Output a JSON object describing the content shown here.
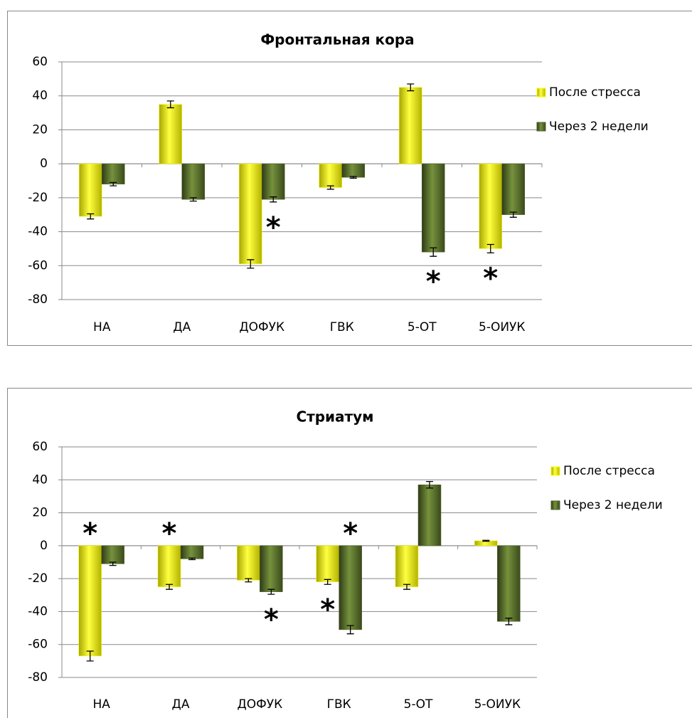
{
  "chart_data": [
    {
      "type": "bar",
      "title": "Фронтальная кора",
      "categories": [
        "НА",
        "ДА",
        "ДОФУК",
        "ГВК",
        "5-ОТ",
        "5-ОИУК"
      ],
      "series": [
        {
          "name": "После стресса",
          "color": "#ffff00",
          "values": [
            -31,
            35,
            -59,
            -14,
            45,
            -50
          ],
          "errors": [
            1.5,
            2,
            2.5,
            1,
            2,
            2.5
          ]
        },
        {
          "name": "Через 2 недели",
          "color": "#4f6228",
          "values": [
            -12,
            -21,
            -21,
            -8,
            -52,
            -30
          ],
          "errors": [
            1,
            1,
            1.5,
            0.5,
            2.5,
            1.5
          ]
        }
      ],
      "ylim": [
        -80,
        60
      ],
      "yticks": [
        -80,
        -60,
        -40,
        -20,
        0,
        20,
        40,
        60
      ],
      "grid": true,
      "legend": "right",
      "annotations": [
        {
          "text": "*",
          "category": "ДОФУК",
          "series": "Через 2 недели",
          "position": "below"
        },
        {
          "text": "*",
          "category": "5-ОТ",
          "series": "Через 2 недели",
          "position": "below"
        },
        {
          "text": "*",
          "category": "5-ОИУК",
          "series": "После стресса",
          "position": "below"
        }
      ]
    },
    {
      "type": "bar",
      "title": "Стриатум",
      "categories": [
        "НА",
        "ДА",
        "ДОФУК",
        "ГВК",
        "5-ОТ",
        "5-ОИУК"
      ],
      "series": [
        {
          "name": "После стресса",
          "color": "#ffff00",
          "values": [
            -67,
            -25,
            -21,
            -22,
            -25,
            3
          ],
          "errors": [
            3,
            1.5,
            1,
            1.5,
            1.5,
            0.3
          ]
        },
        {
          "name": "Через 2 недели",
          "color": "#4f6228",
          "values": [
            -11,
            -8,
            -28,
            -51,
            37,
            -46
          ],
          "errors": [
            1,
            0.5,
            1.5,
            2.5,
            2,
            2
          ]
        }
      ],
      "ylim": [
        -80,
        60
      ],
      "yticks": [
        -80,
        -60,
        -40,
        -20,
        0,
        20,
        40,
        60
      ],
      "grid": true,
      "legend": "right",
      "annotations": [
        {
          "text": "*",
          "category": "НА",
          "series": "После стресса",
          "position": "above"
        },
        {
          "text": "*",
          "category": "ДА",
          "series": "После стресса",
          "position": "above"
        },
        {
          "text": "*",
          "category": "ДОФУК",
          "series": "Через 2 недели",
          "position": "below"
        },
        {
          "text": "*",
          "category": "ГВК",
          "series": "После стресса",
          "position": "below"
        },
        {
          "text": "*",
          "category": "ГВК",
          "series": "Через 2 недели",
          "position": "above"
        }
      ]
    }
  ]
}
